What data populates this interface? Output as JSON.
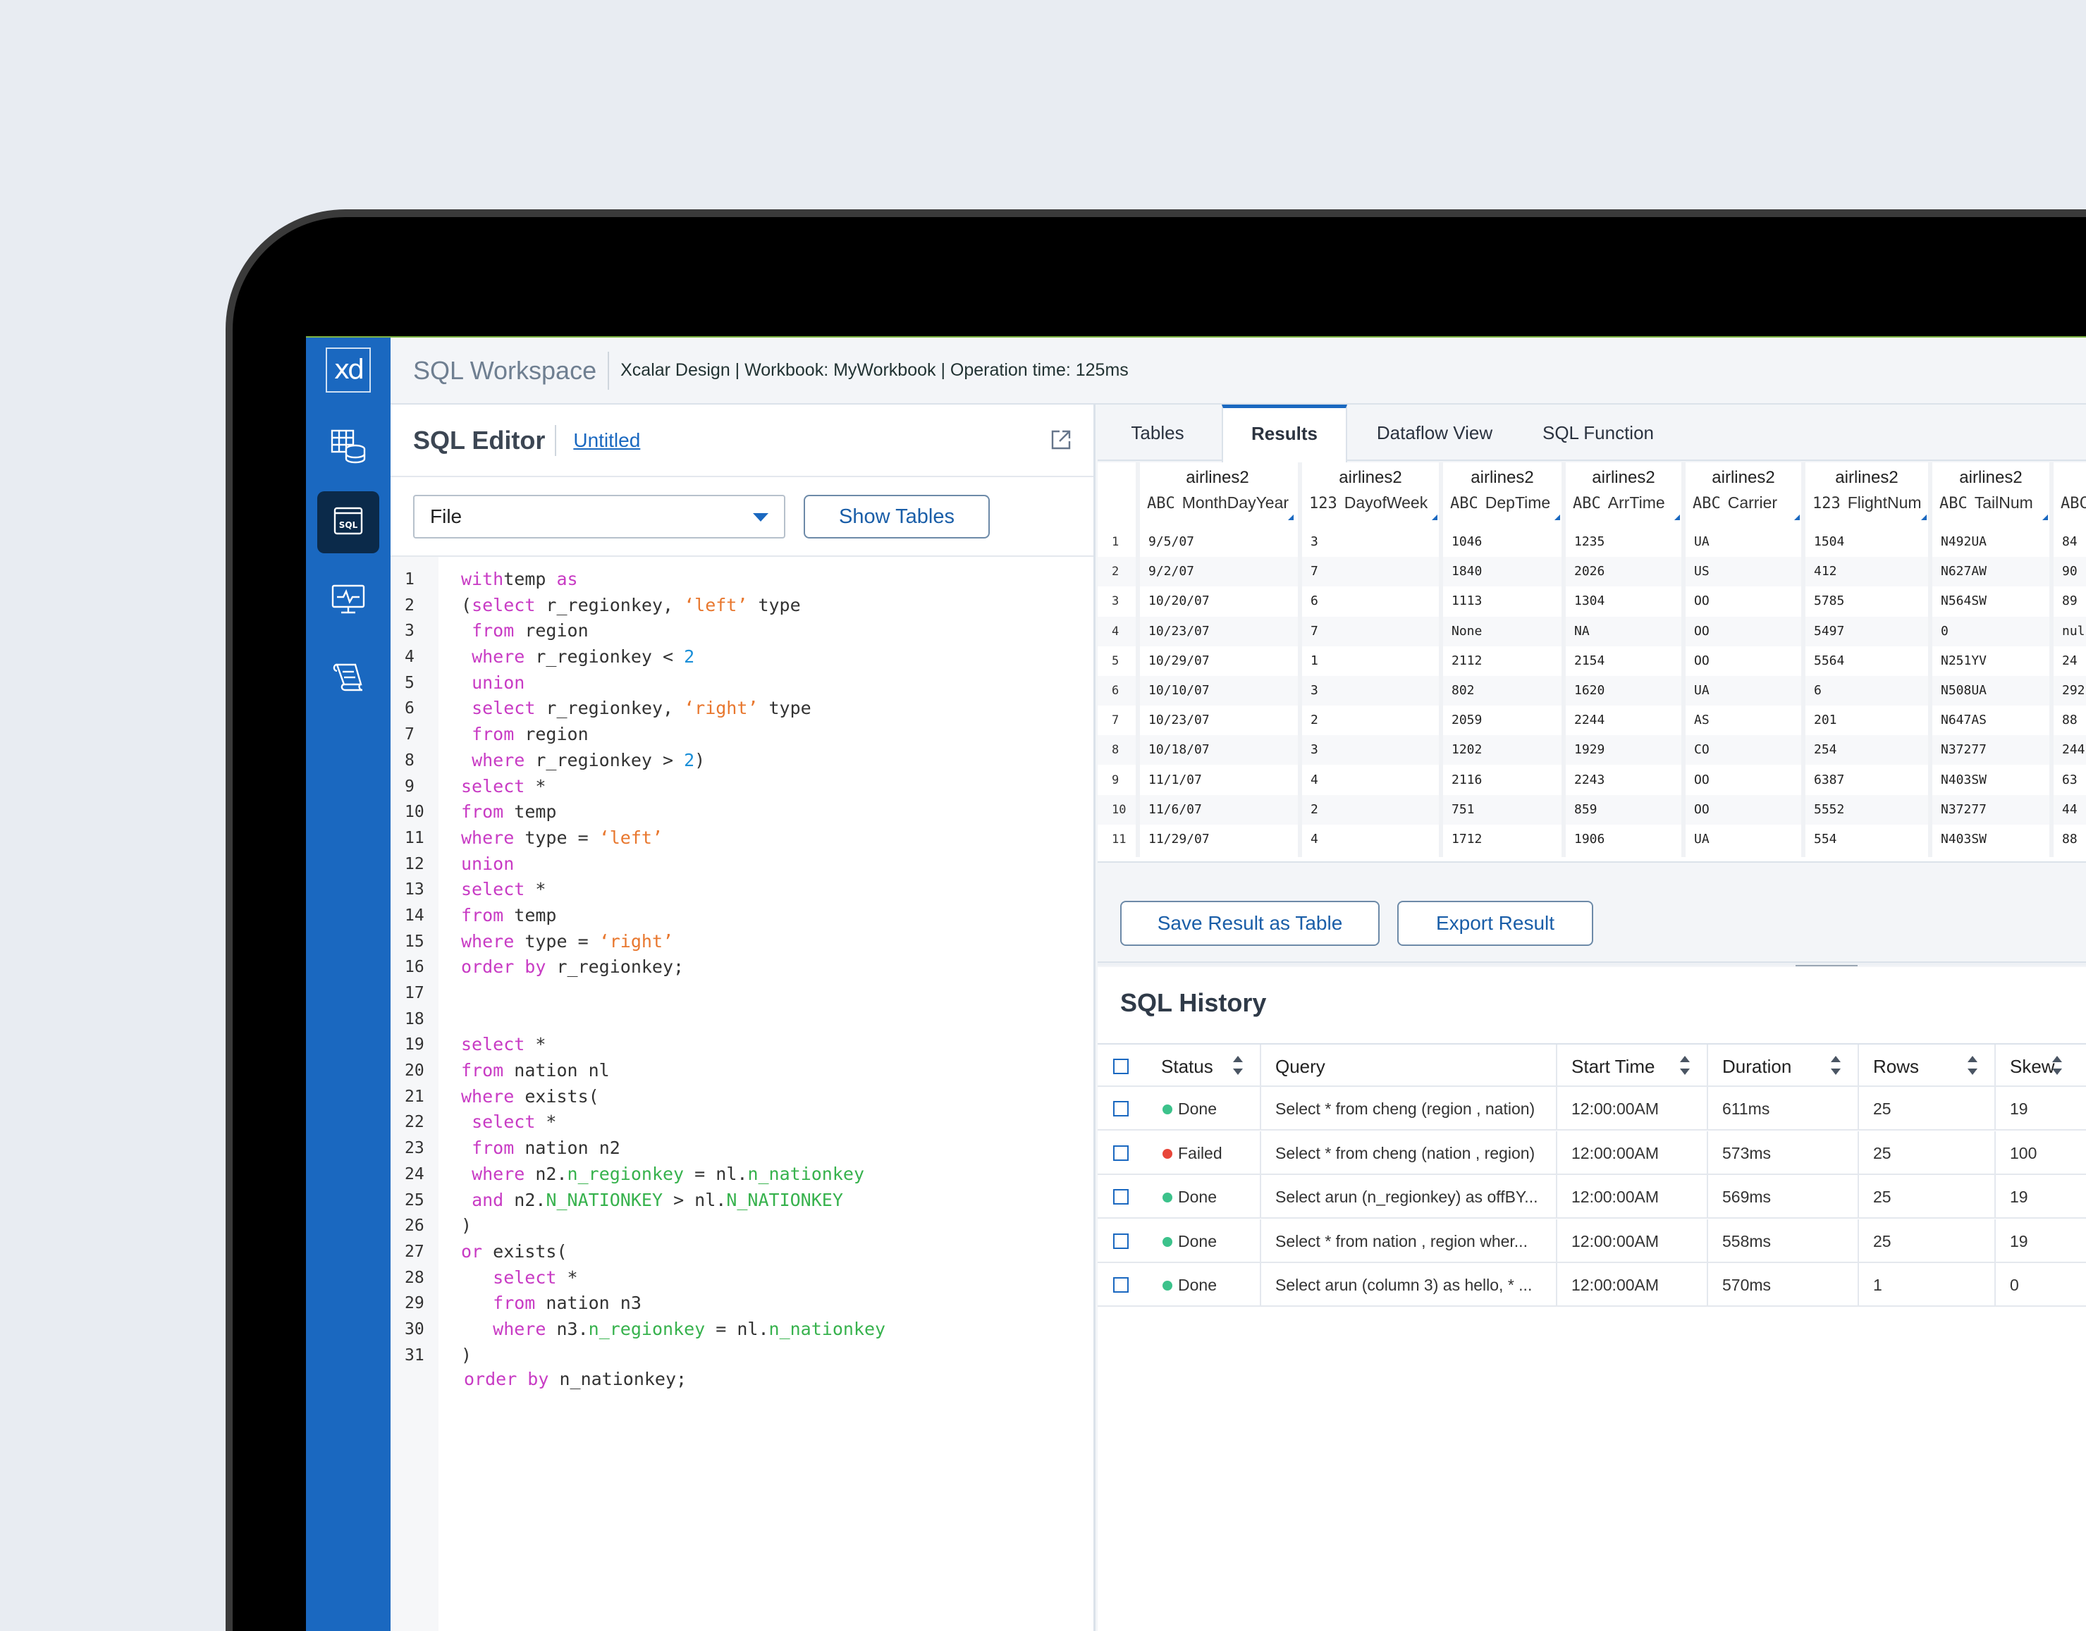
{
  "app": {
    "title": "SQL Workspace",
    "meta": "Xcalar Design  | Workbook: MyWorkbook | Operation time: 125ms",
    "logo_text": "xd",
    "sql_icon_text": "SQL"
  },
  "colors": {
    "accent": "#1a68c0",
    "sidebar": "#1a68c0",
    "keyword": "#c83bc4",
    "string": "#e8772e",
    "number": "#1a8fd8",
    "identifier": "#37b24d",
    "done": "#3cc28b",
    "failed": "#e8463a"
  },
  "editor": {
    "title": "SQL Editor",
    "file_name": "Untitled",
    "file_select": "File",
    "show_tables": "Show Tables",
    "lines": [
      {
        "n": "1",
        "segs": [
          [
            "kw",
            "with"
          ],
          [
            "",
            "temp "
          ],
          [
            "kw",
            "as"
          ]
        ]
      },
      {
        "n": "2",
        "segs": [
          [
            "",
            "("
          ],
          [
            "kw",
            "select"
          ],
          [
            "",
            " r_regionkey, "
          ],
          [
            "str",
            "‘left’"
          ],
          [
            "",
            " type"
          ]
        ]
      },
      {
        "n": "3",
        "segs": [
          [
            "",
            " "
          ],
          [
            "kw",
            "from"
          ],
          [
            "",
            " region"
          ]
        ]
      },
      {
        "n": "4",
        "segs": [
          [
            "",
            " "
          ],
          [
            "kw",
            "where"
          ],
          [
            "",
            " r_regionkey < "
          ],
          [
            "num",
            "2"
          ]
        ]
      },
      {
        "n": "5",
        "segs": [
          [
            "",
            " "
          ],
          [
            "kw",
            "union"
          ]
        ]
      },
      {
        "n": "6",
        "segs": [
          [
            "",
            " "
          ],
          [
            "kw",
            "select"
          ],
          [
            "",
            " r_regionkey, "
          ],
          [
            "str",
            "‘right’"
          ],
          [
            "",
            " type"
          ]
        ]
      },
      {
        "n": "7",
        "segs": [
          [
            "",
            " "
          ],
          [
            "kw",
            "from"
          ],
          [
            "",
            " region"
          ]
        ]
      },
      {
        "n": "8",
        "segs": [
          [
            "",
            " "
          ],
          [
            "kw",
            "where"
          ],
          [
            "",
            " r_regionkey > "
          ],
          [
            "num",
            "2"
          ],
          [
            "",
            ")"
          ]
        ]
      },
      {
        "n": "9",
        "segs": [
          [
            "kw",
            "select"
          ],
          [
            "",
            " *"
          ]
        ]
      },
      {
        "n": "10",
        "segs": [
          [
            "kw",
            "from"
          ],
          [
            "",
            " temp"
          ]
        ]
      },
      {
        "n": "11",
        "segs": [
          [
            "kw",
            "where"
          ],
          [
            "",
            " type = "
          ],
          [
            "str",
            "‘left’"
          ]
        ]
      },
      {
        "n": "12",
        "segs": [
          [
            "kw",
            "union"
          ]
        ]
      },
      {
        "n": "13",
        "segs": [
          [
            "kw",
            "select"
          ],
          [
            "",
            " *"
          ]
        ]
      },
      {
        "n": "14",
        "segs": [
          [
            "kw",
            "from"
          ],
          [
            "",
            " temp"
          ]
        ]
      },
      {
        "n": "15",
        "segs": [
          [
            "kw",
            "where"
          ],
          [
            "",
            " type = "
          ],
          [
            "str",
            "‘right’"
          ]
        ]
      },
      {
        "n": "16",
        "segs": [
          [
            "kw",
            "order by"
          ],
          [
            "",
            " r_regionkey;"
          ]
        ]
      },
      {
        "n": "17",
        "segs": []
      },
      {
        "n": "18",
        "segs": []
      },
      {
        "n": "19",
        "segs": [
          [
            "kw",
            "select"
          ],
          [
            "",
            " *"
          ]
        ]
      },
      {
        "n": "20",
        "segs": [
          [
            "kw",
            "from"
          ],
          [
            "",
            " nation nl"
          ]
        ]
      },
      {
        "n": "21",
        "segs": [
          [
            "kw",
            "where"
          ],
          [
            "",
            " exists("
          ]
        ]
      },
      {
        "n": "22",
        "segs": [
          [
            "",
            " "
          ],
          [
            "kw",
            "select"
          ],
          [
            "",
            " *"
          ]
        ]
      },
      {
        "n": "23",
        "segs": [
          [
            "",
            " "
          ],
          [
            "kw",
            "from"
          ],
          [
            "",
            " nation n2"
          ]
        ]
      },
      {
        "n": "24",
        "segs": [
          [
            "",
            " "
          ],
          [
            "kw",
            "where"
          ],
          [
            "",
            " n2."
          ],
          [
            "id",
            "n_regionkey"
          ],
          [
            "",
            " = nl."
          ],
          [
            "id",
            "n_nationkey"
          ]
        ]
      },
      {
        "n": "25",
        "segs": [
          [
            "",
            " "
          ],
          [
            "kw",
            "and"
          ],
          [
            "",
            " n2."
          ],
          [
            "id",
            "N_NATIONKEY"
          ],
          [
            "",
            " > nl."
          ],
          [
            "id",
            "N_NATIONKEY"
          ]
        ]
      },
      {
        "n": "26",
        "segs": [
          [
            "",
            ")"
          ]
        ]
      },
      {
        "n": "27",
        "segs": [
          [
            "kw",
            "or"
          ],
          [
            "",
            " exists("
          ]
        ]
      },
      {
        "n": "28",
        "segs": [
          [
            "",
            "   "
          ],
          [
            "kw",
            "select"
          ],
          [
            "",
            " *"
          ]
        ]
      },
      {
        "n": "29",
        "segs": [
          [
            "",
            "   "
          ],
          [
            "kw",
            "from"
          ],
          [
            "",
            " nation n3"
          ]
        ]
      },
      {
        "n": "30",
        "segs": [
          [
            "",
            "   "
          ],
          [
            "kw",
            "where"
          ],
          [
            "",
            " n3."
          ],
          [
            "id",
            "n_regionkey"
          ],
          [
            "",
            " = nl."
          ],
          [
            "id",
            "n_nationkey"
          ]
        ]
      },
      {
        "n": "31",
        "segs": [
          [
            "",
            ")"
          ]
        ]
      },
      {
        "n": "",
        "segs": [
          [
            "kw",
            "order by"
          ],
          [
            "",
            " n_nationkey;"
          ]
        ]
      }
    ]
  },
  "tabs": [
    "Tables",
    "Results",
    "Dataflow View",
    "SQL Function"
  ],
  "active_tab": "Results",
  "results": {
    "columns": [
      {
        "table": "airlines2",
        "type": "ABC",
        "name": "MonthDayYear"
      },
      {
        "table": "airlines2",
        "type": "123",
        "name": "DayofWeek"
      },
      {
        "table": "airlines2",
        "type": "ABC",
        "name": "DepTime"
      },
      {
        "table": "airlines2",
        "type": "ABC",
        "name": "ArrTime"
      },
      {
        "table": "airlines2",
        "type": "ABC",
        "name": "Carrier"
      },
      {
        "table": "airlines2",
        "type": "123",
        "name": "FlightNum"
      },
      {
        "table": "airlines2",
        "type": "ABC",
        "name": "TailNum"
      },
      {
        "table": "",
        "type": "ABC",
        "name": ""
      }
    ],
    "rows": [
      [
        "1",
        "9/5/07",
        "3",
        "1046",
        "1235",
        "UA",
        "1504",
        "N492UA",
        "84"
      ],
      [
        "2",
        "9/2/07",
        "7",
        "1840",
        "2026",
        "US",
        "412",
        "N627AW",
        "90"
      ],
      [
        "3",
        "10/20/07",
        "6",
        "1113",
        "1304",
        "OO",
        "5785",
        "N564SW",
        "89"
      ],
      [
        "4",
        "10/23/07",
        "7",
        "None",
        "NA",
        "OO",
        "5497",
        "0",
        "nul"
      ],
      [
        "5",
        "10/29/07",
        "1",
        "2112",
        "2154",
        "OO",
        "5564",
        "N251YV",
        "24"
      ],
      [
        "6",
        "10/10/07",
        "3",
        "802",
        "1620",
        "UA",
        "6",
        "N508UA",
        "292"
      ],
      [
        "7",
        "10/23/07",
        "2",
        "2059",
        "2244",
        "AS",
        "201",
        "N647AS",
        "88"
      ],
      [
        "8",
        "10/18/07",
        "3",
        "1202",
        "1929",
        "CO",
        "254",
        "N37277",
        "244"
      ],
      [
        "9",
        "11/1/07",
        "4",
        "2116",
        "2243",
        "OO",
        "6387",
        "N403SW",
        "63"
      ],
      [
        "10",
        "11/6/07",
        "2",
        "751",
        "859",
        "OO",
        "5552",
        "N37277",
        "44"
      ],
      [
        "11",
        "11/29/07",
        "4",
        "1712",
        "1906",
        "UA",
        "554",
        "N403SW",
        "88"
      ]
    ],
    "save_button": "Save Result as Table",
    "export_button": "Export Result"
  },
  "history": {
    "title": "SQL History",
    "headers": [
      "Status",
      "Query",
      "Start Time",
      "Duration",
      "Rows",
      "Skew"
    ],
    "rows": [
      {
        "status": "Done",
        "status_color": "#3cc28b",
        "query": "Select * from cheng (region , nation)",
        "start": "12:00:00AM",
        "duration": "611ms",
        "rows": "25",
        "skew": "19"
      },
      {
        "status": "Failed",
        "status_color": "#e8463a",
        "query": "Select * from cheng (nation , region)",
        "start": "12:00:00AM",
        "duration": "573ms",
        "rows": "25",
        "skew": "100"
      },
      {
        "status": "Done",
        "status_color": "#3cc28b",
        "query": "Select arun (n_regionkey) as offBY...",
        "start": "12:00:00AM",
        "duration": "569ms",
        "rows": "25",
        "skew": "19"
      },
      {
        "status": "Done",
        "status_color": "#3cc28b",
        "query": "Select * from nation , region wher...",
        "start": "12:00:00AM",
        "duration": "558ms",
        "rows": "25",
        "skew": "19"
      },
      {
        "status": "Done",
        "status_color": "#3cc28b",
        "query": "Select arun (column 3) as hello, * ...",
        "start": "12:00:00AM",
        "duration": "570ms",
        "rows": "1",
        "skew": "0"
      }
    ]
  }
}
